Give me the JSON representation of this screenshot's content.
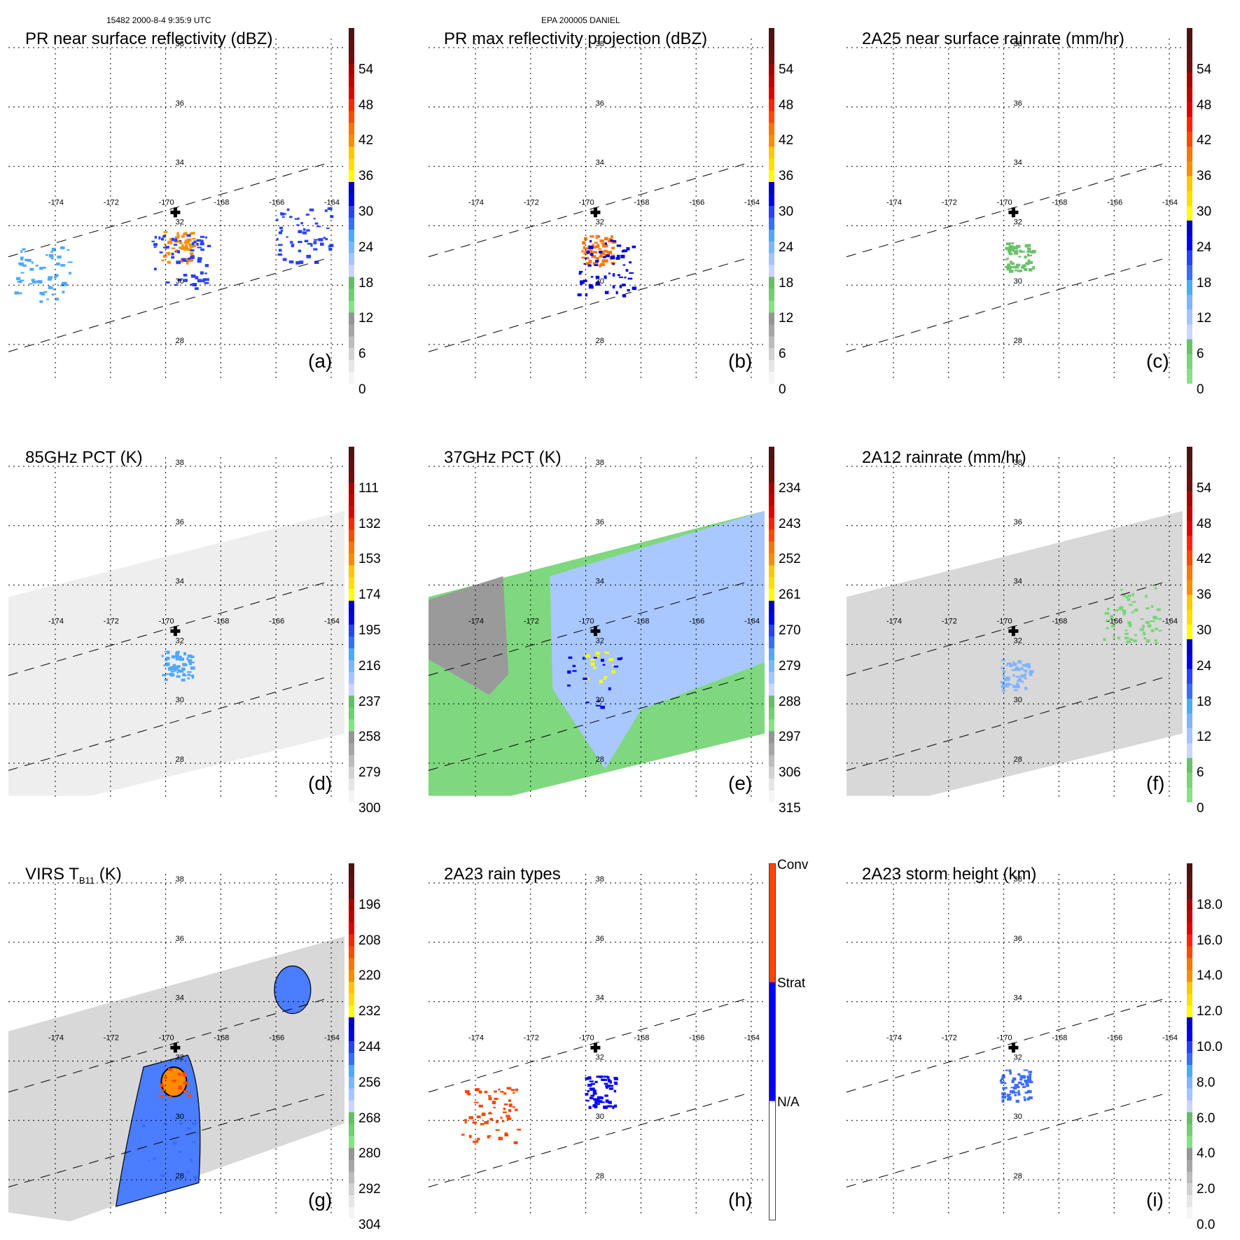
{
  "header": {
    "left": "15482 2000-8-4 9:35:9 UTC",
    "center": "EPA 200005 DANIEL"
  },
  "chart_data": [
    {
      "id": "a",
      "type": "heatmap",
      "title": "PR near surface reflectivity (dBZ)",
      "panel_label": "(a)",
      "colorbar": {
        "ticks": [
          "0",
          "6",
          "12",
          "18",
          "24",
          "30",
          "36",
          "42",
          "48",
          "54"
        ],
        "range": [
          0,
          60
        ],
        "scheme": "reflectivity"
      },
      "swath": "PR",
      "features": [
        {
          "lon": -169.6,
          "lat": 31.3,
          "value": 40,
          "desc": "convective core"
        },
        {
          "lon": -169.5,
          "lat": 30.8,
          "value": 28,
          "desc": "storm rainband"
        },
        {
          "lon": -174.5,
          "lat": 30.4,
          "value": 24,
          "desc": "scattered echoes"
        },
        {
          "lon": -165.0,
          "lat": 31.7,
          "value": 28,
          "desc": "isolated cell"
        }
      ]
    },
    {
      "id": "b",
      "type": "heatmap",
      "title": "PR max reflectivity projection (dBZ)",
      "panel_label": "(b)",
      "colorbar": {
        "ticks": [
          "0",
          "6",
          "12",
          "18",
          "24",
          "30",
          "36",
          "42",
          "48",
          "54"
        ],
        "range": [
          0,
          60
        ],
        "scheme": "reflectivity"
      },
      "swath": "PR",
      "features": [
        {
          "lon": -169.6,
          "lat": 31.2,
          "value": 42,
          "desc": "convective core"
        },
        {
          "lon": -169.3,
          "lat": 30.6,
          "value": 30,
          "desc": "rainband"
        }
      ]
    },
    {
      "id": "c",
      "type": "heatmap",
      "title": "2A25 near surface rainrate (mm/hr)",
      "panel_label": "(c)",
      "colorbar": {
        "ticks": [
          "0",
          "6",
          "12",
          "18",
          "24",
          "30",
          "36",
          "42",
          "48",
          "54"
        ],
        "range": [
          0,
          60
        ],
        "scheme": "rainrate"
      },
      "swath": "PR",
      "features": [
        {
          "lon": -169.5,
          "lat": 31.0,
          "value": 5,
          "desc": "light rain area"
        }
      ]
    },
    {
      "id": "d",
      "type": "heatmap",
      "title": "85GHz PCT (K)",
      "panel_label": "(d)",
      "colorbar": {
        "ticks": [
          "111",
          "132",
          "153",
          "174",
          "195",
          "216",
          "237",
          "258",
          "279",
          "300"
        ],
        "range": [
          90,
          300
        ],
        "scheme": "pct",
        "reversed": true
      },
      "swath": "TMI",
      "features": [
        {
          "lon": -169.6,
          "lat": 31.3,
          "value": 210,
          "desc": "ice scattering core"
        }
      ]
    },
    {
      "id": "e",
      "type": "heatmap",
      "title": "37GHz PCT (K)",
      "panel_label": "(e)",
      "colorbar": {
        "ticks": [
          "234",
          "243",
          "252",
          "261",
          "270",
          "279",
          "288",
          "297",
          "306",
          "315"
        ],
        "range": [
          225,
          315
        ],
        "scheme": "pct",
        "reversed": true
      },
      "swath": "TMI",
      "features": [
        {
          "lon": -169.6,
          "lat": 31.3,
          "value": 262,
          "desc": "min PCT"
        },
        {
          "lon": -169.7,
          "lat": 30.8,
          "value": 270,
          "desc": "deep convection"
        }
      ]
    },
    {
      "id": "f",
      "type": "heatmap",
      "title": "2A12 rainrate (mm/hr)",
      "panel_label": "(f)",
      "colorbar": {
        "ticks": [
          "0",
          "6",
          "12",
          "18",
          "24",
          "30",
          "36",
          "42",
          "48",
          "54"
        ],
        "range": [
          0,
          60
        ],
        "scheme": "rainrate"
      },
      "swath": "TMI",
      "features": [
        {
          "lon": -169.6,
          "lat": 31.0,
          "value": 14,
          "desc": "storm rain area"
        },
        {
          "lon": -165.4,
          "lat": 33.0,
          "value": 3,
          "desc": "rainband NE"
        }
      ]
    },
    {
      "id": "g",
      "type": "heatmap",
      "title": "VIRS T",
      "title_sub": "B11",
      "title_unit": "(K)",
      "panel_label": "(g)",
      "colorbar": {
        "ticks": [
          "196",
          "208",
          "220",
          "232",
          "244",
          "256",
          "268",
          "280",
          "292",
          "304"
        ],
        "range": [
          184,
          304
        ],
        "scheme": "pct",
        "reversed": true
      },
      "swath": "VIRS",
      "features": [
        {
          "lon": -169.7,
          "lat": 31.3,
          "value": 215,
          "desc": "cold cloud top"
        },
        {
          "lon": -169.9,
          "lat": 29.0,
          "value": 250,
          "desc": "cloud shield"
        }
      ]
    },
    {
      "id": "h",
      "type": "heatmap",
      "title": "2A23 rain types",
      "panel_label": "(h)",
      "colorbar": {
        "categorical": [
          "Conv",
          "Strat",
          "N/A"
        ],
        "colors": [
          "#ff4500",
          "#0000ff",
          "#ffffff"
        ]
      },
      "swath": "PR",
      "features": [
        {
          "lon": -169.5,
          "lat": 31.0,
          "category": "Strat",
          "desc": "stratiform area"
        },
        {
          "lon": -173.5,
          "lat": 30.2,
          "category": "Conv",
          "desc": "scattered convection"
        }
      ]
    },
    {
      "id": "i",
      "type": "heatmap",
      "title": "2A23 storm height (km)",
      "panel_label": "(i)",
      "colorbar": {
        "ticks": [
          "0.0",
          "2.0",
          "4.0",
          "6.0",
          "8.0",
          "10.0",
          "12.0",
          "14.0",
          "16.0",
          "18.0"
        ],
        "range": [
          0,
          20
        ],
        "scheme": "height"
      },
      "swath": "PR",
      "features": [
        {
          "lon": -169.6,
          "lat": 31.2,
          "value": 9,
          "desc": "max storm height"
        }
      ]
    }
  ],
  "map": {
    "lon_ticks": [
      "-174",
      "-172",
      "-170",
      "-168",
      "-166",
      "-164"
    ],
    "lat_ticks": [
      "38",
      "36",
      "34",
      "32",
      "30",
      "28"
    ],
    "lon_range": [
      -175.8,
      -163.6
    ],
    "lat_range": [
      26.8,
      38.8
    ],
    "storm_center": {
      "lon": -169.65,
      "lat": 32.45
    }
  }
}
